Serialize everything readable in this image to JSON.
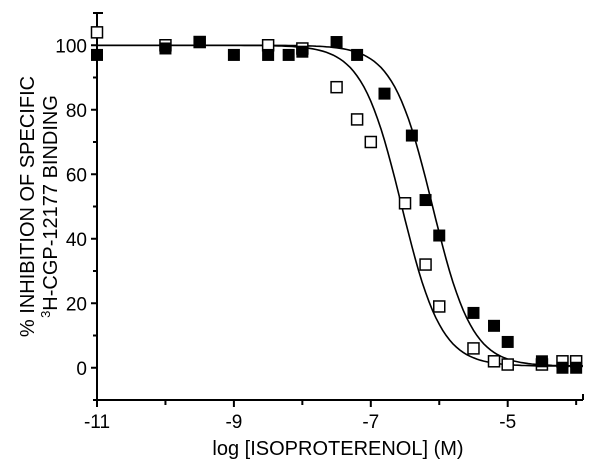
{
  "chart_data": {
    "type": "scatter",
    "title": "",
    "xlabel": "log [ISOPROTERENOL]  (M)",
    "ylabel_line1": "% INHIBITION OF SPECIFIC",
    "ylabel_line2_sup": "3",
    "ylabel_line2_rest": "H-CGP-12177 BINDING",
    "xlim": [
      -11,
      -3.9
    ],
    "ylim": [
      -10,
      110
    ],
    "x_ticks": [
      -11,
      -9,
      -7,
      -5
    ],
    "x_tick_labels": [
      "-11",
      "-9",
      "-7",
      "-5"
    ],
    "y_ticks": [
      0,
      20,
      40,
      60,
      80,
      100
    ],
    "y_tick_labels": [
      "0",
      "20",
      "40",
      "60",
      "80",
      "100"
    ],
    "grid": false,
    "series": [
      {
        "marker": "open-square",
        "color": "#000000",
        "points": [
          {
            "x": -11.0,
            "y": 104
          },
          {
            "x": -10.0,
            "y": 100
          },
          {
            "x": -9.5,
            "y": 101
          },
          {
            "x": -8.5,
            "y": 100
          },
          {
            "x": -8.0,
            "y": 99
          },
          {
            "x": -7.5,
            "y": 87
          },
          {
            "x": -7.2,
            "y": 77
          },
          {
            "x": -7.0,
            "y": 70
          },
          {
            "x": -6.5,
            "y": 51
          },
          {
            "x": -6.2,
            "y": 32
          },
          {
            "x": -6.0,
            "y": 19
          },
          {
            "x": -5.5,
            "y": 6
          },
          {
            "x": -5.2,
            "y": 2
          },
          {
            "x": -5.0,
            "y": 1
          },
          {
            "x": -4.5,
            "y": 1
          },
          {
            "x": -4.2,
            "y": 2
          },
          {
            "x": -4.0,
            "y": 2
          }
        ],
        "fit": {
          "top": 100,
          "bottom": 0.5,
          "log_ic50": -6.55,
          "hill": 0.75
        }
      },
      {
        "marker": "filled-square",
        "color": "#000000",
        "points": [
          {
            "x": -11.0,
            "y": 97
          },
          {
            "x": -10.0,
            "y": 99
          },
          {
            "x": -9.5,
            "y": 101
          },
          {
            "x": -9.0,
            "y": 97
          },
          {
            "x": -8.5,
            "y": 97
          },
          {
            "x": -8.2,
            "y": 97
          },
          {
            "x": -8.0,
            "y": 98
          },
          {
            "x": -7.5,
            "y": 101
          },
          {
            "x": -7.2,
            "y": 97
          },
          {
            "x": -6.8,
            "y": 85
          },
          {
            "x": -6.4,
            "y": 72
          },
          {
            "x": -6.2,
            "y": 52
          },
          {
            "x": -6.0,
            "y": 41
          },
          {
            "x": -5.5,
            "y": 17
          },
          {
            "x": -5.2,
            "y": 13
          },
          {
            "x": -5.0,
            "y": 8
          },
          {
            "x": -4.5,
            "y": 2
          },
          {
            "x": -4.2,
            "y": 0
          },
          {
            "x": -4.0,
            "y": 0
          }
        ],
        "fit": {
          "top": 100,
          "bottom": 0.5,
          "log_ic50": -6.1,
          "hill": 0.75
        }
      }
    ]
  }
}
